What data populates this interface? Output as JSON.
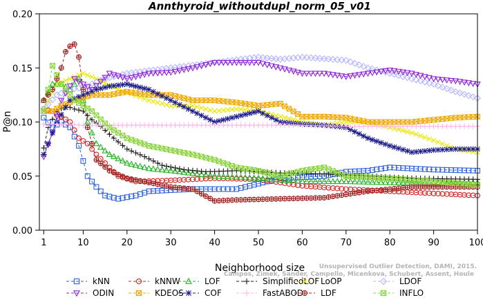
{
  "chart_data": {
    "type": "line",
    "title": "Annthyroid_withoutdupl_norm_05_v01",
    "xlabel": "Neighborhood size",
    "ylabel": "P@n",
    "xlim": [
      0,
      100
    ],
    "ylim": [
      0,
      0.2
    ],
    "xticks": [
      "1",
      "10",
      "20",
      "30",
      "40",
      "50",
      "60",
      "70",
      "80",
      "90",
      "100"
    ],
    "yticks": [
      "0.00",
      "0.05",
      "0.10",
      "0.15",
      "0.20"
    ],
    "credit_lines": [
      "Campos, Zimek, Sander, Campello, Micenkova, Schubert, Assent, Houle",
      "Unsupervised Outlier Detection, DAMI, 2015."
    ],
    "series": [
      {
        "name": "kNN",
        "color": "#2a5fd9",
        "marker": "square",
        "dash": "dash",
        "points": [
          [
            1,
            0.104
          ],
          [
            3,
            0.095
          ],
          [
            5,
            0.1
          ],
          [
            7,
            0.095
          ],
          [
            9,
            0.078
          ],
          [
            11,
            0.05
          ],
          [
            13,
            0.04
          ],
          [
            15,
            0.032
          ],
          [
            18,
            0.029
          ],
          [
            22,
            0.032
          ],
          [
            25,
            0.036
          ],
          [
            35,
            0.038
          ],
          [
            45,
            0.038
          ],
          [
            55,
            0.048
          ],
          [
            65,
            0.05
          ],
          [
            70,
            0.054
          ],
          [
            75,
            0.055
          ],
          [
            80,
            0.058
          ],
          [
            90,
            0.056
          ],
          [
            100,
            0.055
          ]
        ]
      },
      {
        "name": "kNNW",
        "color": "#d42020",
        "marker": "circle",
        "dash": "dash",
        "points": [
          [
            1,
            0.112
          ],
          [
            3,
            0.11
          ],
          [
            5,
            0.105
          ],
          [
            7,
            0.1
          ],
          [
            9,
            0.085
          ],
          [
            11,
            0.08
          ],
          [
            13,
            0.07
          ],
          [
            15,
            0.062
          ],
          [
            18,
            0.05
          ],
          [
            22,
            0.045
          ],
          [
            30,
            0.046
          ],
          [
            40,
            0.048
          ],
          [
            50,
            0.047
          ],
          [
            60,
            0.041
          ],
          [
            70,
            0.038
          ],
          [
            80,
            0.036
          ],
          [
            90,
            0.034
          ],
          [
            100,
            0.032
          ]
        ]
      },
      {
        "name": "LOF",
        "color": "#22b422",
        "marker": "triangle",
        "dash": "dash",
        "points": [
          [
            1,
            0.12
          ],
          [
            3,
            0.135
          ],
          [
            5,
            0.135
          ],
          [
            7,
            0.13
          ],
          [
            9,
            0.14
          ],
          [
            11,
            0.1
          ],
          [
            13,
            0.08
          ],
          [
            16,
            0.07
          ],
          [
            20,
            0.062
          ],
          [
            25,
            0.057
          ],
          [
            30,
            0.055
          ],
          [
            40,
            0.05
          ],
          [
            50,
            0.048
          ],
          [
            60,
            0.045
          ],
          [
            70,
            0.045
          ],
          [
            80,
            0.044
          ],
          [
            90,
            0.043
          ],
          [
            100,
            0.044
          ]
        ]
      },
      {
        "name": "SimplifiedLOF",
        "color": "#1a1a1a",
        "marker": "plus",
        "dash": "dash",
        "points": [
          [
            1,
            0.076
          ],
          [
            2,
            0.095
          ],
          [
            4,
            0.11
          ],
          [
            6,
            0.115
          ],
          [
            8,
            0.112
          ],
          [
            10,
            0.11
          ],
          [
            12,
            0.102
          ],
          [
            14,
            0.096
          ],
          [
            17,
            0.085
          ],
          [
            20,
            0.075
          ],
          [
            24,
            0.068
          ],
          [
            28,
            0.06
          ],
          [
            33,
            0.056
          ],
          [
            38,
            0.054
          ],
          [
            45,
            0.055
          ],
          [
            55,
            0.053
          ],
          [
            65,
            0.052
          ],
          [
            75,
            0.05
          ],
          [
            85,
            0.048
          ],
          [
            100,
            0.047
          ]
        ]
      },
      {
        "name": "LoOP",
        "color": "#e8e800",
        "marker": "x",
        "dash": "dash",
        "points": [
          [
            1,
            0.112
          ],
          [
            4,
            0.135
          ],
          [
            7,
            0.14
          ],
          [
            10,
            0.145
          ],
          [
            13,
            0.14
          ],
          [
            18,
            0.13
          ],
          [
            25,
            0.12
          ],
          [
            30,
            0.115
          ],
          [
            35,
            0.115
          ],
          [
            40,
            0.11
          ],
          [
            45,
            0.112
          ],
          [
            50,
            0.11
          ],
          [
            55,
            0.105
          ],
          [
            60,
            0.1
          ],
          [
            65,
            0.097
          ],
          [
            70,
            0.1
          ],
          [
            75,
            0.1
          ],
          [
            80,
            0.095
          ],
          [
            85,
            0.09
          ],
          [
            90,
            0.083
          ],
          [
            95,
            0.075
          ],
          [
            100,
            0.072
          ]
        ]
      },
      {
        "name": "LDOF",
        "color": "#b4b4ff",
        "marker": "diamond",
        "dash": "dash",
        "points": [
          [
            1,
            0.112
          ],
          [
            4,
            0.125
          ],
          [
            7,
            0.13
          ],
          [
            10,
            0.132
          ],
          [
            15,
            0.14
          ],
          [
            20,
            0.145
          ],
          [
            30,
            0.15
          ],
          [
            40,
            0.155
          ],
          [
            50,
            0.16
          ],
          [
            55,
            0.158
          ],
          [
            60,
            0.16
          ],
          [
            70,
            0.157
          ],
          [
            75,
            0.15
          ],
          [
            80,
            0.145
          ],
          [
            85,
            0.14
          ],
          [
            90,
            0.135
          ],
          [
            95,
            0.128
          ],
          [
            100,
            0.122
          ]
        ]
      },
      {
        "name": "ODIN",
        "color": "#8c22d4",
        "marker": "triangle-down",
        "dash": "dash",
        "points": [
          [
            1,
            0.068
          ],
          [
            3,
            0.09
          ],
          [
            5,
            0.12
          ],
          [
            8,
            0.14
          ],
          [
            12,
            0.13
          ],
          [
            16,
            0.145
          ],
          [
            20,
            0.14
          ],
          [
            25,
            0.145
          ],
          [
            30,
            0.146
          ],
          [
            35,
            0.15
          ],
          [
            40,
            0.155
          ],
          [
            45,
            0.155
          ],
          [
            50,
            0.155
          ],
          [
            55,
            0.15
          ],
          [
            60,
            0.145
          ],
          [
            65,
            0.145
          ],
          [
            70,
            0.142
          ],
          [
            75,
            0.145
          ],
          [
            80,
            0.148
          ],
          [
            85,
            0.145
          ],
          [
            90,
            0.14
          ],
          [
            95,
            0.138
          ],
          [
            100,
            0.135
          ]
        ]
      },
      {
        "name": "KDEOS",
        "color": "#f0a800",
        "marker": "square-x",
        "dash": "dash",
        "points": [
          [
            1,
            0.11
          ],
          [
            3,
            0.11
          ],
          [
            5,
            0.115
          ],
          [
            8,
            0.12
          ],
          [
            12,
            0.125
          ],
          [
            16,
            0.125
          ],
          [
            20,
            0.128
          ],
          [
            25,
            0.125
          ],
          [
            30,
            0.125
          ],
          [
            35,
            0.12
          ],
          [
            40,
            0.12
          ],
          [
            45,
            0.118
          ],
          [
            50,
            0.115
          ],
          [
            55,
            0.117
          ],
          [
            60,
            0.105
          ],
          [
            65,
            0.105
          ],
          [
            70,
            0.104
          ],
          [
            75,
            0.1
          ],
          [
            80,
            0.1
          ],
          [
            85,
            0.1
          ],
          [
            90,
            0.102
          ],
          [
            95,
            0.104
          ],
          [
            100,
            0.105
          ]
        ]
      },
      {
        "name": "COF",
        "color": "#1a1a8c",
        "marker": "asterisk",
        "dash": "dash",
        "points": [
          [
            1,
            0.07
          ],
          [
            4,
            0.1
          ],
          [
            7,
            0.12
          ],
          [
            10,
            0.125
          ],
          [
            13,
            0.13
          ],
          [
            16,
            0.133
          ],
          [
            20,
            0.135
          ],
          [
            25,
            0.13
          ],
          [
            30,
            0.12
          ],
          [
            35,
            0.11
          ],
          [
            40,
            0.1
          ],
          [
            45,
            0.105
          ],
          [
            50,
            0.11
          ],
          [
            55,
            0.1
          ],
          [
            60,
            0.098
          ],
          [
            65,
            0.097
          ],
          [
            70,
            0.095
          ],
          [
            75,
            0.085
          ],
          [
            80,
            0.078
          ],
          [
            85,
            0.072
          ],
          [
            90,
            0.074
          ],
          [
            95,
            0.075
          ],
          [
            100,
            0.075
          ]
        ]
      },
      {
        "name": "FastABOD",
        "color": "#ffb4e8",
        "marker": "plus",
        "dash": "dash",
        "points": [
          [
            1,
            0.098
          ],
          [
            5,
            0.098
          ],
          [
            10,
            0.097
          ],
          [
            20,
            0.097
          ],
          [
            30,
            0.097
          ],
          [
            40,
            0.097
          ],
          [
            50,
            0.097
          ],
          [
            60,
            0.097
          ],
          [
            70,
            0.096
          ],
          [
            80,
            0.096
          ],
          [
            90,
            0.096
          ],
          [
            100,
            0.096
          ]
        ]
      },
      {
        "name": "LDF",
        "color": "#a01e1e",
        "marker": "circle-plus",
        "dash": "dash",
        "points": [
          [
            1,
            0.12
          ],
          [
            3,
            0.13
          ],
          [
            5,
            0.15
          ],
          [
            6,
            0.165
          ],
          [
            7,
            0.17
          ],
          [
            8,
            0.172
          ],
          [
            9,
            0.16
          ],
          [
            10,
            0.13
          ],
          [
            11,
            0.095
          ],
          [
            13,
            0.065
          ],
          [
            16,
            0.055
          ],
          [
            20,
            0.048
          ],
          [
            25,
            0.044
          ],
          [
            30,
            0.04
          ],
          [
            35,
            0.038
          ],
          [
            40,
            0.027
          ],
          [
            45,
            0.028
          ],
          [
            55,
            0.029
          ],
          [
            65,
            0.03
          ],
          [
            75,
            0.036
          ],
          [
            85,
            0.04
          ],
          [
            100,
            0.04
          ]
        ]
      },
      {
        "name": "INFLO",
        "color": "#88d438",
        "marker": "square-x",
        "dash": "dash",
        "points": [
          [
            1,
            0.11
          ],
          [
            2,
            0.13
          ],
          [
            3,
            0.152
          ],
          [
            5,
            0.135
          ],
          [
            8,
            0.12
          ],
          [
            12,
            0.11
          ],
          [
            16,
            0.095
          ],
          [
            20,
            0.085
          ],
          [
            25,
            0.078
          ],
          [
            30,
            0.074
          ],
          [
            35,
            0.07
          ],
          [
            40,
            0.065
          ],
          [
            45,
            0.058
          ],
          [
            50,
            0.055
          ],
          [
            55,
            0.05
          ],
          [
            60,
            0.055
          ],
          [
            65,
            0.058
          ],
          [
            70,
            0.05
          ],
          [
            80,
            0.048
          ],
          [
            90,
            0.045
          ],
          [
            100,
            0.042
          ]
        ]
      }
    ]
  }
}
